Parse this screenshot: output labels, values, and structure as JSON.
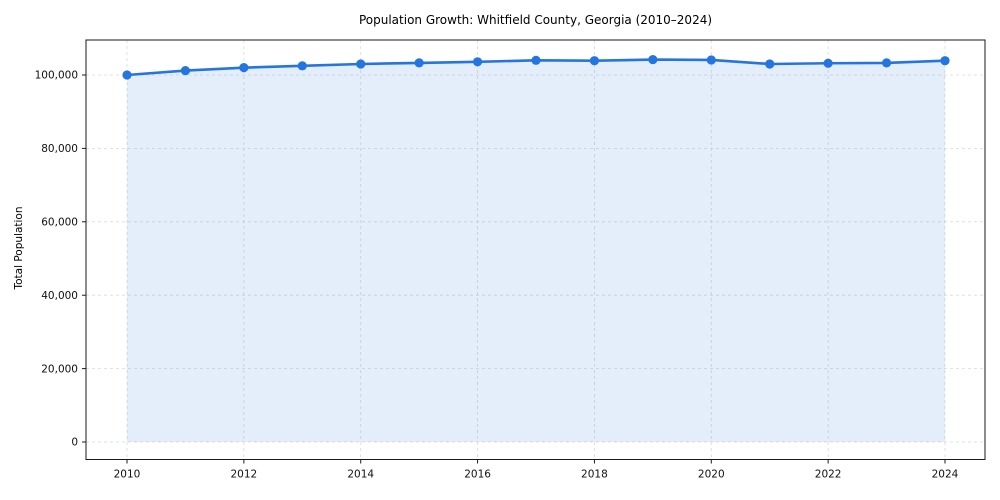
{
  "page": {
    "background_color": "#ffffff",
    "text_color": "#000000"
  },
  "chart_data": {
    "type": "line",
    "title": "Population Growth: Whitfield County, Georgia (2010–2024)",
    "xlabel": "",
    "ylabel": "Total Population",
    "x": [
      2010,
      2011,
      2012,
      2013,
      2014,
      2015,
      2016,
      2017,
      2018,
      2019,
      2020,
      2021,
      2022,
      2023,
      2024
    ],
    "series": [
      {
        "name": "Total Population",
        "values": [
          100000,
          101200,
          102000,
          102500,
          103000,
          103300,
          103600,
          104000,
          103900,
          104200,
          104100,
          103000,
          103200,
          103300,
          103900
        ]
      }
    ],
    "xticks": [
      2010,
      2012,
      2014,
      2016,
      2018,
      2020,
      2022,
      2024
    ],
    "xtick_labels": [
      "2010",
      "2012",
      "2014",
      "2016",
      "2018",
      "2020",
      "2022",
      "2024"
    ],
    "yticks": [
      0,
      20000,
      40000,
      60000,
      80000,
      100000
    ],
    "ytick_labels": [
      "0",
      "20,000",
      "40,000",
      "60,000",
      "80,000",
      "100,000"
    ],
    "ylim": [
      0,
      109600
    ],
    "grid": true,
    "grid_style": "dashed",
    "grid_color": "#d9d9d9",
    "legend": false,
    "line_color": "#2575e0",
    "marker": "circle",
    "fill_below": true,
    "fill_opacity": 0.12,
    "spine_color": "#1a1a1a"
  }
}
